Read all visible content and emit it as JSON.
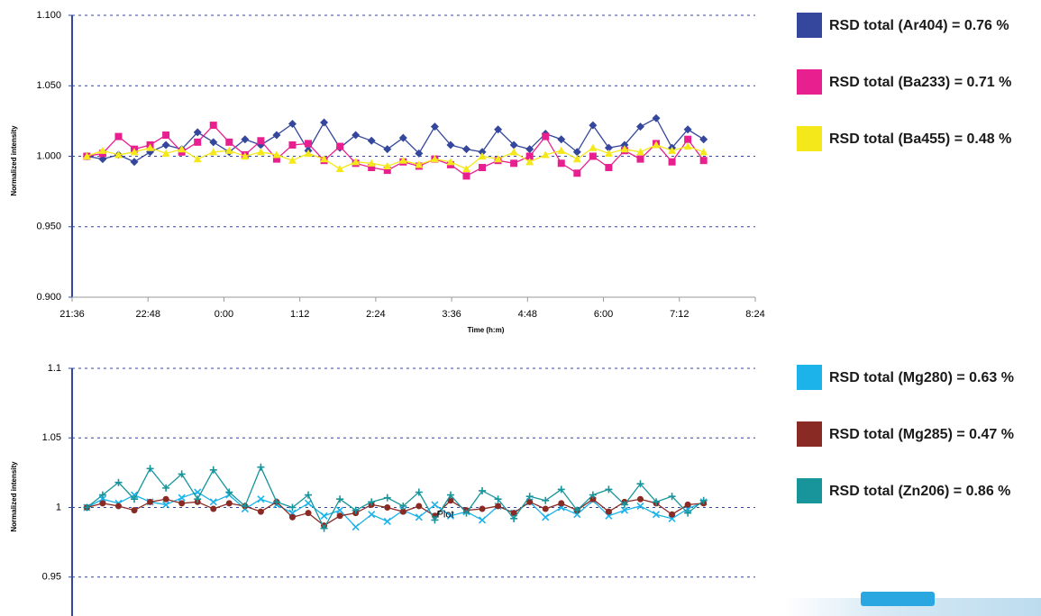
{
  "chart_data": [
    {
      "type": "line",
      "y_label": "Normalized intensity",
      "x_label": "Time (h:m)",
      "x": [
        1310,
        1325,
        1340,
        1355,
        1370,
        1385,
        1400,
        1415,
        1430,
        1445,
        1460,
        1475,
        1490,
        1505,
        1520,
        1535,
        1550,
        1565,
        1580,
        1595,
        1610,
        1625,
        1640,
        1655,
        1670,
        1685,
        1700,
        1715,
        1730,
        1745,
        1760,
        1775,
        1790,
        1805,
        1820,
        1835,
        1850,
        1865,
        1880,
        1895
      ],
      "xlim": [
        1296,
        1944
      ],
      "xticks": [
        {
          "value": 1296,
          "label": "21:36"
        },
        {
          "value": 1368,
          "label": "22:48"
        },
        {
          "value": 1440,
          "label": "0:00"
        },
        {
          "value": 1512,
          "label": "1:12"
        },
        {
          "value": 1584,
          "label": "2:24"
        },
        {
          "value": 1656,
          "label": "3:36"
        },
        {
          "value": 1728,
          "label": "4:48"
        },
        {
          "value": 1800,
          "label": "6:00"
        },
        {
          "value": 1872,
          "label": "7:12"
        },
        {
          "value": 1944,
          "label": "8:24"
        }
      ],
      "ylim": [
        0.9,
        1.1
      ],
      "yticks": [
        {
          "value": 0.9,
          "label": "0.900"
        },
        {
          "value": 0.95,
          "label": "0.950"
        },
        {
          "value": 1.0,
          "label": "1.000"
        },
        {
          "value": 1.05,
          "label": "1.050"
        },
        {
          "value": 1.1,
          "label": "1.100"
        }
      ],
      "grid": true,
      "series": [
        {
          "name": "RSD total (Ar404) = 0.76 %",
          "color": "#34479c",
          "marker": "diamond",
          "values": [
            1.0,
            0.998,
            1.001,
            0.996,
            1.003,
            1.008,
            1.005,
            1.017,
            1.01,
            1.003,
            1.012,
            1.008,
            1.015,
            1.023,
            1.004,
            1.024,
            1.006,
            1.015,
            1.011,
            1.005,
            1.013,
            1.002,
            1.021,
            1.008,
            1.005,
            1.003,
            1.019,
            1.008,
            1.005,
            1.016,
            1.012,
            1.003,
            1.022,
            1.006,
            1.008,
            1.021,
            1.027,
            1.006,
            1.019,
            1.012
          ]
        },
        {
          "name": "RSD total (Ba233) = 0.71 %",
          "color": "#e8208f",
          "marker": "square",
          "values": [
            1.0,
            1.002,
            1.014,
            1.005,
            1.008,
            1.015,
            1.003,
            1.01,
            1.022,
            1.01,
            1.001,
            1.011,
            0.998,
            1.008,
            1.009,
            0.997,
            1.007,
            0.995,
            0.992,
            0.99,
            0.996,
            0.993,
            0.998,
            0.994,
            0.986,
            0.992,
            0.997,
            0.995,
            1.0,
            1.014,
            0.995,
            0.988,
            1.0,
            0.992,
            1.004,
            0.998,
            1.009,
            0.996,
            1.012,
            0.997
          ]
        },
        {
          "name": "RSD total (Ba455) = 0.48 %",
          "color": "#f4e81a",
          "marker": "triangle",
          "values": [
            1.0,
            1.004,
            1.001,
            1.003,
            1.006,
            1.002,
            1.005,
            0.998,
            1.003,
            1.004,
            1.0,
            1.003,
            1.001,
            0.997,
            1.002,
            0.998,
            0.991,
            0.996,
            0.995,
            0.993,
            0.997,
            0.994,
            0.998,
            0.996,
            0.991,
            1.0,
            0.998,
            1.003,
            0.996,
            1.001,
            1.004,
            0.998,
            1.006,
            1.002,
            1.005,
            1.003,
            1.008,
            1.004,
            1.007,
            1.003
          ]
        }
      ]
    },
    {
      "type": "line",
      "y_label": "Normalized intensity",
      "annotation": "Plot",
      "annotation_x": 1650,
      "annotation_y": 0.996,
      "x": [
        1310,
        1325,
        1340,
        1355,
        1370,
        1385,
        1400,
        1415,
        1430,
        1445,
        1460,
        1475,
        1490,
        1505,
        1520,
        1535,
        1550,
        1565,
        1580,
        1595,
        1610,
        1625,
        1640,
        1655,
        1670,
        1685,
        1700,
        1715,
        1730,
        1745,
        1760,
        1775,
        1790,
        1805,
        1820,
        1835,
        1850,
        1865,
        1880,
        1895
      ],
      "xlim": [
        1296,
        1944
      ],
      "ylim": [
        0.9,
        1.1
      ],
      "yticks": [
        0.95,
        1,
        1.05,
        1.1
      ],
      "grid": true,
      "series": [
        {
          "name": "RSD total (Mg280) = 0.63 %",
          "color": "#1cb2ea",
          "marker": "x",
          "values": [
            1.0,
            1.006,
            1.003,
            1.009,
            1.004,
            1.002,
            1.007,
            1.011,
            1.004,
            1.009,
            0.999,
            1.006,
            1.002,
            0.996,
            1.003,
            0.994,
            0.998,
            0.986,
            0.995,
            0.99,
            0.998,
            0.993,
            1.002,
            0.994,
            0.997,
            0.991,
            1.001,
            0.996,
            1.004,
            0.993,
            1.0,
            0.995,
            1.005,
            0.994,
            0.998,
            1.001,
            0.995,
            0.992,
            0.999,
            1.004
          ]
        },
        {
          "name": "RSD total (Mg285) = 0.47 %",
          "color": "#8a2a24",
          "marker": "circle",
          "values": [
            1.0,
            1.003,
            1.001,
            0.998,
            1.004,
            1.006,
            1.003,
            1.004,
            0.999,
            1.003,
            1.001,
            0.997,
            1.004,
            0.993,
            0.996,
            0.987,
            0.994,
            0.996,
            1.002,
            1.0,
            0.997,
            1.001,
            0.994,
            1.005,
            0.998,
            0.999,
            1.001,
            0.996,
            1.004,
            0.999,
            1.003,
            0.998,
            1.006,
            0.997,
            1.004,
            1.006,
            1.003,
            0.995,
            1.002,
            1.003
          ]
        },
        {
          "name": "RSD total (Zn206) = 0.86 %",
          "color": "#17959b",
          "marker": "plus",
          "values": [
            1.0,
            1.009,
            1.018,
            1.006,
            1.028,
            1.014,
            1.024,
            1.006,
            1.027,
            1.011,
            1.001,
            1.029,
            1.004,
            1.0,
            1.009,
            0.985,
            1.006,
            0.998,
            1.004,
            1.007,
            1.001,
            1.011,
            0.991,
            1.009,
            0.996,
            1.012,
            1.006,
            0.992,
            1.008,
            1.005,
            1.013,
            0.998,
            1.009,
            1.013,
            1.002,
            1.017,
            1.004,
            1.008,
            0.996,
            1.005
          ]
        }
      ]
    }
  ]
}
